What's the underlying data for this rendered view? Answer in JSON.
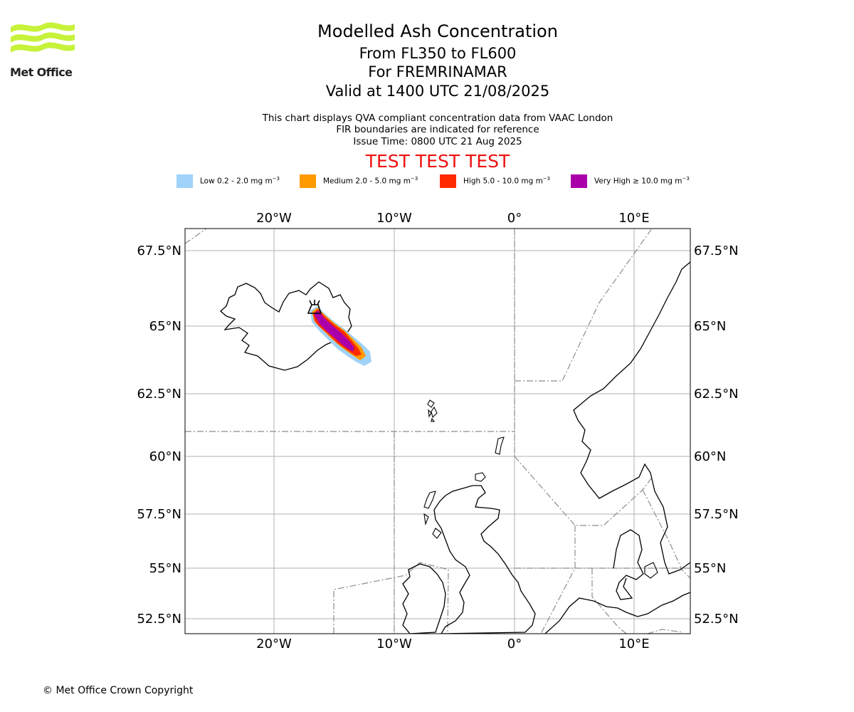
{
  "brand": {
    "name": "Met Office",
    "logo_color": "#c6f23a"
  },
  "header": {
    "title": "Modelled Ash Concentration",
    "flight_levels": "From FL350 to FL600",
    "volcano": "For FREMRINAMAR",
    "valid_time": "Valid at 1400 UTC 21/08/2025"
  },
  "notes": {
    "line1": "This chart displays QVA compliant concentration data from VAAC London",
    "line2": "FIR boundaries are indicated for reference",
    "issue_time": "Issue Time: 0800 UTC 21 Aug 2025"
  },
  "test_banner": "TEST TEST TEST",
  "legend": [
    {
      "label": "Low 0.2 - 2.0 mg m",
      "unit_exp": "−3",
      "color": "#a0d2fa"
    },
    {
      "label": "Medium 2.0 - 5.0 mg m",
      "unit_exp": "−3",
      "color": "#ff9900"
    },
    {
      "label": "High 5.0 - 10.0 mg m",
      "unit_exp": "−3",
      "color": "#ff2a00"
    },
    {
      "label": "Very High  ≥  10.0 mg m",
      "unit_exp": "−3",
      "color": "#aa00aa"
    }
  ],
  "map": {
    "lon_ticks": [
      "20°W",
      "10°W",
      "0°",
      "10°E"
    ],
    "lat_ticks": [
      "67.5°N",
      "65°N",
      "62.5°N",
      "60°N",
      "57.5°N",
      "55°N",
      "52.5°N"
    ],
    "extent": {
      "lon_min": -27.4,
      "lon_max": 14.5,
      "lat_min": 51.9,
      "lat_max": 68.3
    },
    "volcano_marker": "triangle-icon"
  },
  "footer": "© Met Office Crown Copyright"
}
